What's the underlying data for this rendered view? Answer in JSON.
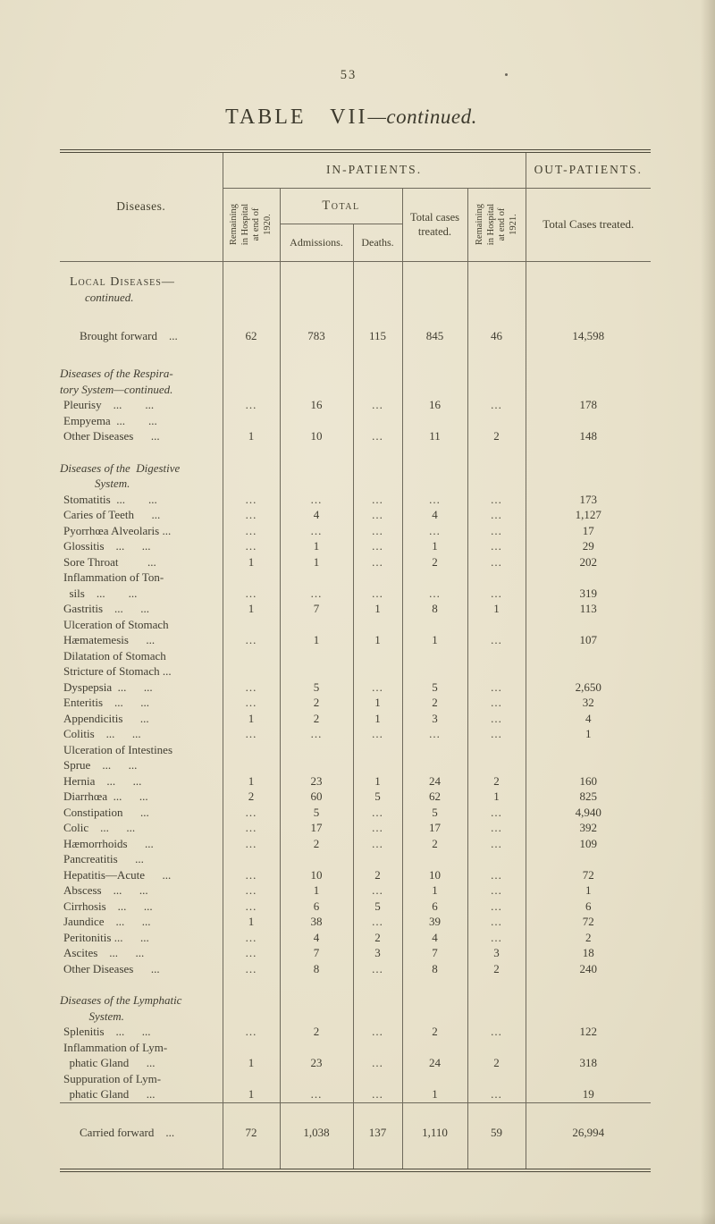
{
  "page": {
    "number": "53",
    "title_main": "TABLE VII",
    "title_suffix": "—continued."
  },
  "colors": {
    "paper": "#e8e1ca",
    "ink": "#403d31",
    "rule": "#6e695b"
  },
  "table": {
    "headers": {
      "diseases": "Diseases.",
      "in_patients": "IN-PATIENTS.",
      "out_patients": "OUT-PATIENTS.",
      "remaining_1920": "Remaining\nin Hospital\nat end of\n1920.",
      "total": "Total",
      "admissions": "Admissions.",
      "deaths": "Deaths.",
      "total_cases_treated": "Total cases\ntreated.",
      "remaining_1921": "Remaining\nin Hospital\nat end of\n1921.",
      "out_total_cases_treated": "Total Cases treated."
    },
    "rows": [
      {
        "type": "section",
        "line1": "Local Diseases—",
        "line2": "continued."
      },
      {
        "type": "spacer"
      },
      {
        "type": "total",
        "label": "Brought forward ...",
        "values": [
          "62",
          "783",
          "115",
          "845",
          "46",
          "14,598"
        ]
      },
      {
        "type": "spacer"
      },
      {
        "type": "subsection",
        "text": "Diseases of the Respira-\ntory System—continued."
      },
      {
        "type": "disease",
        "label": "Pleurisy ...  ...",
        "values": [
          "...",
          "16",
          "...",
          "16",
          "...",
          "178"
        ]
      },
      {
        "type": "disease",
        "label": "Empyema ...  ...",
        "values": [
          "",
          "",
          "",
          "",
          "",
          ""
        ]
      },
      {
        "type": "disease",
        "label": "Other Diseases  ...",
        "values": [
          "1",
          "10",
          "...",
          "11",
          "2",
          "148"
        ]
      },
      {
        "type": "spacer"
      },
      {
        "type": "subsection",
        "text": "Diseases of the Digestive\n   System."
      },
      {
        "type": "disease",
        "label": "Stomatitis ...  ...",
        "values": [
          "...",
          "...",
          "...",
          "...",
          "...",
          "173"
        ]
      },
      {
        "type": "disease",
        "label": "Caries of Teeth  ...",
        "values": [
          "...",
          "4",
          "...",
          "4",
          "...",
          "1,127"
        ]
      },
      {
        "type": "disease",
        "label": "Pyorrhœa Alveolaris ...",
        "values": [
          "...",
          "...",
          "...",
          "...",
          "...",
          "17"
        ]
      },
      {
        "type": "disease",
        "label": "Glossitis ...  ...",
        "values": [
          "...",
          "1",
          "...",
          "1",
          "...",
          "29"
        ]
      },
      {
        "type": "disease",
        "label": "Sore Throat   ...",
        "values": [
          "1",
          "1",
          "...",
          "2",
          "...",
          "202"
        ]
      },
      {
        "type": "disease",
        "label": "Inflammation of Ton-\n sils ...  ...",
        "values": [
          "...",
          "...",
          "...",
          "...",
          "...",
          "319"
        ]
      },
      {
        "type": "disease",
        "label": "Gastritis ...  ...",
        "values": [
          "1",
          "7",
          "1",
          "8",
          "1",
          "113"
        ]
      },
      {
        "type": "disease",
        "label": "Ulceration of Stomach",
        "values": [
          "",
          "",
          "",
          "",
          "",
          ""
        ]
      },
      {
        "type": "disease",
        "label": "Hæmatemesis  ...",
        "values": [
          "...",
          "1",
          "1",
          "1",
          "...",
          "107"
        ]
      },
      {
        "type": "disease",
        "label": "Dilatation of Stomach",
        "values": [
          "",
          "",
          "",
          "",
          "",
          ""
        ]
      },
      {
        "type": "disease",
        "label": "Stricture of Stomach ...",
        "values": [
          "",
          "",
          "",
          "",
          "",
          ""
        ]
      },
      {
        "type": "disease",
        "label": "Dyspepsia ...  ...",
        "values": [
          "...",
          "5",
          "...",
          "5",
          "...",
          "2,650"
        ]
      },
      {
        "type": "disease",
        "label": "Enteritis ...  ...",
        "values": [
          "...",
          "2",
          "1",
          "2",
          "...",
          "32"
        ]
      },
      {
        "type": "disease",
        "label": "Appendicitis  ...",
        "values": [
          "1",
          "2",
          "1",
          "3",
          "...",
          "4"
        ]
      },
      {
        "type": "disease",
        "label": "Colitis ...  ...",
        "values": [
          "...",
          "...",
          "...",
          "...",
          "...",
          "1"
        ]
      },
      {
        "type": "disease",
        "label": "Ulceration of Intestines",
        "values": [
          "",
          "",
          "",
          "",
          "",
          ""
        ]
      },
      {
        "type": "disease",
        "label": "Sprue ...  ...",
        "values": [
          "",
          "",
          "",
          "",
          "",
          ""
        ]
      },
      {
        "type": "disease",
        "label": "Hernia ...  ...",
        "values": [
          "1",
          "23",
          "1",
          "24",
          "2",
          "160"
        ]
      },
      {
        "type": "disease",
        "label": "Diarrhœa ...  ...",
        "values": [
          "2",
          "60",
          "5",
          "62",
          "1",
          "825"
        ]
      },
      {
        "type": "disease",
        "label": "Constipation  ...",
        "values": [
          "...",
          "5",
          "...",
          "5",
          "...",
          "4,940"
        ]
      },
      {
        "type": "disease",
        "label": "Colic ...  ...",
        "values": [
          "...",
          "17",
          "...",
          "17",
          "...",
          "392"
        ]
      },
      {
        "type": "disease",
        "label": "Hæmorrhoids  ...",
        "values": [
          "...",
          "2",
          "...",
          "2",
          "...",
          "109"
        ]
      },
      {
        "type": "disease",
        "label": "Pancreatitis  ...",
        "values": [
          "",
          "",
          "",
          "",
          "",
          ""
        ]
      },
      {
        "type": "disease",
        "label": "Hepatitis—Acute  ...",
        "values": [
          "...",
          "10",
          "2",
          "10",
          "...",
          "72"
        ]
      },
      {
        "type": "disease",
        "label": "Abscess ...  ...",
        "values": [
          "...",
          "1",
          "...",
          "1",
          "...",
          "1"
        ]
      },
      {
        "type": "disease",
        "label": "Cirrhosis ...  ...",
        "values": [
          "...",
          "6",
          "5",
          "6",
          "...",
          "6"
        ]
      },
      {
        "type": "disease",
        "label": "Jaundice ...  ...",
        "values": [
          "1",
          "38",
          "...",
          "39",
          "...",
          "72"
        ]
      },
      {
        "type": "disease",
        "label": "Peritonitis ...  ...",
        "values": [
          "...",
          "4",
          "2",
          "4",
          "...",
          "2"
        ]
      },
      {
        "type": "disease",
        "label": "Ascites ...  ...",
        "values": [
          "...",
          "7",
          "3",
          "7",
          "3",
          "18"
        ]
      },
      {
        "type": "disease",
        "label": "Other Diseases  ...",
        "values": [
          "...",
          "8",
          "...",
          "8",
          "2",
          "240"
        ]
      },
      {
        "type": "spacer"
      },
      {
        "type": "subsection",
        "text": "Diseases of the Lymphatic\n   System."
      },
      {
        "type": "disease",
        "label": "Splenitis ...  ...",
        "values": [
          "...",
          "2",
          "...",
          "2",
          "...",
          "122"
        ]
      },
      {
        "type": "disease",
        "label": "Inflammation of Lym-\n phatic Gland  ...",
        "values": [
          "1",
          "23",
          "...",
          "24",
          "2",
          "318"
        ]
      },
      {
        "type": "disease",
        "label": "Suppuration of Lym-\n phatic Gland  ...",
        "values": [
          "1",
          "...",
          "...",
          "1",
          "...",
          "19"
        ]
      }
    ],
    "footer_row": {
      "type": "carried",
      "label": "Carried forward ...",
      "values": [
        "72",
        "1,038",
        "137",
        "1,110",
        "59",
        "26,994"
      ]
    }
  }
}
